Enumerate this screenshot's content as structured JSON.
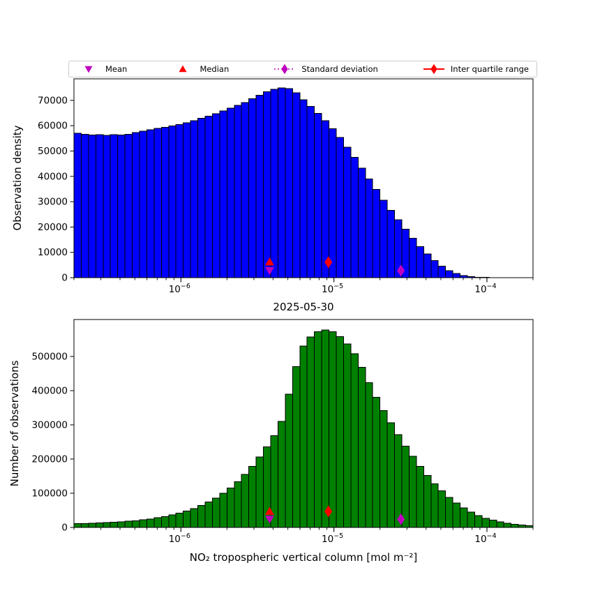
{
  "figure": {
    "background": "#ffffff"
  },
  "legend": {
    "items": [
      {
        "label": "Mean",
        "marker": "triangle-down",
        "color": "#bf00bf",
        "line": "none"
      },
      {
        "label": "Median",
        "marker": "triangle-up",
        "color": "#ff0000",
        "line": "none"
      },
      {
        "label": "Standard deviation",
        "marker": "diamond",
        "color": "#bf00bf",
        "line": "dotted"
      },
      {
        "label": "Inter quartile range",
        "marker": "diamond",
        "color": "#ff0000",
        "line": "solid"
      }
    ]
  },
  "chart_data": [
    {
      "type": "bar",
      "ylabel": "Observation density",
      "xlabel": "2025-05-30",
      "xscale": "log",
      "xlim": [
        2e-07,
        0.0002
      ],
      "ylim": [
        0,
        78500
      ],
      "yticks": [
        0,
        10000,
        20000,
        30000,
        40000,
        50000,
        60000,
        70000
      ],
      "xticks": [
        {
          "value": 1e-06,
          "label_base": "10",
          "label_exp": "−6"
        },
        {
          "value": 1e-05,
          "label_base": "10",
          "label_exp": "−5"
        },
        {
          "value": 0.0001,
          "label_base": "10",
          "label_exp": "−4"
        }
      ],
      "grid": false,
      "bar_color": "#0000ff",
      "bar_edge_color": "#000000",
      "values": [
        57000,
        56600,
        56300,
        56400,
        56200,
        56400,
        56300,
        56600,
        57300,
        57900,
        58400,
        58900,
        59400,
        59900,
        60500,
        61200,
        62000,
        62900,
        63800,
        64700,
        65800,
        66900,
        68000,
        69200,
        70600,
        72000,
        73400,
        74400,
        74900,
        74700,
        73000,
        70300,
        67600,
        64900,
        62000,
        58800,
        55300,
        51500,
        47500,
        43300,
        39000,
        34800,
        30600,
        26600,
        22800,
        19100,
        15600,
        12300,
        9300,
        6700,
        4500,
        2800,
        1600,
        800,
        400,
        200,
        90,
        40,
        15,
        6,
        3,
        1,
        0
      ],
      "markers": [
        {
          "name": "median",
          "type": "triangle-up",
          "color": "#ff0000",
          "x": 3.8e-06,
          "y": 6200
        },
        {
          "name": "mean",
          "type": "triangle-down",
          "color": "#bf00bf",
          "x": 3.8e-06,
          "y": 2800
        },
        {
          "name": "iqr",
          "type": "diamond",
          "color": "#ff0000",
          "x": 9.2e-06,
          "y": 6100
        },
        {
          "name": "std",
          "type": "diamond",
          "color": "#bf00bf",
          "x": 2.74e-05,
          "y": 2800
        }
      ]
    },
    {
      "type": "bar",
      "ylabel": "Number of observations",
      "xlabel": "NO₂ tropospheric vertical column [mol m⁻²]",
      "xscale": "log",
      "xlim": [
        2e-07,
        0.0002
      ],
      "ylim": [
        0,
        608000
      ],
      "yticks": [
        0,
        100000,
        200000,
        300000,
        400000,
        500000
      ],
      "xticks": [
        {
          "value": 1e-06,
          "label_base": "10",
          "label_exp": "−6"
        },
        {
          "value": 1e-05,
          "label_base": "10",
          "label_exp": "−5"
        },
        {
          "value": 0.0001,
          "label_base": "10",
          "label_exp": "−4"
        }
      ],
      "grid": false,
      "bar_color": "#008000",
      "bar_edge_color": "#000000",
      "values": [
        11000,
        11600,
        12300,
        13100,
        14000,
        15100,
        16400,
        18000,
        19900,
        22200,
        25000,
        28200,
        32000,
        36500,
        41800,
        48000,
        55300,
        63900,
        74000,
        85800,
        99500,
        115000,
        134000,
        155000,
        179000,
        206000,
        236000,
        268000,
        310000,
        390000,
        470000,
        530000,
        557000,
        572000,
        577000,
        572000,
        558000,
        537000,
        508000,
        468000,
        423000,
        381000,
        342000,
        306000,
        271000,
        238000,
        208000,
        179000,
        152000,
        128000,
        107000,
        88000,
        71000,
        57000,
        45000,
        35000,
        27000,
        21000,
        16000,
        12000,
        9000,
        6800,
        5000
      ],
      "markers": [
        {
          "name": "median",
          "type": "triangle-up",
          "color": "#ff0000",
          "x": 3.8e-06,
          "y": 47000
        },
        {
          "name": "mean",
          "type": "triangle-down",
          "color": "#bf00bf",
          "x": 3.8e-06,
          "y": 24000
        },
        {
          "name": "iqr",
          "type": "diamond",
          "color": "#ff0000",
          "x": 9.2e-06,
          "y": 47000
        },
        {
          "name": "std",
          "type": "diamond",
          "color": "#bf00bf",
          "x": 2.74e-05,
          "y": 24000
        }
      ]
    }
  ]
}
